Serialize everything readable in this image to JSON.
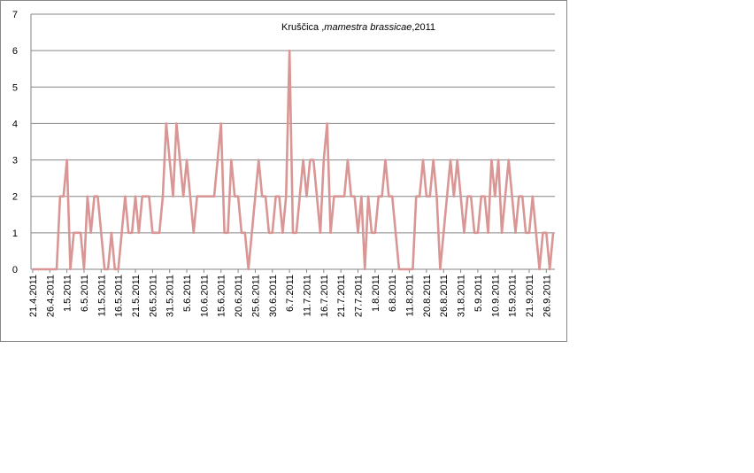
{
  "chart_data": {
    "type": "line",
    "title": [
      "Kruščica ,",
      "mamestra brassicae",
      ",2011"
    ],
    "categories": [
      "21.4.2011",
      null,
      null,
      null,
      null,
      "26.4.2011",
      null,
      null,
      null,
      null,
      "1.5.2011",
      null,
      null,
      null,
      null,
      "6.5.2011",
      null,
      null,
      null,
      null,
      "11.5.2011",
      null,
      null,
      null,
      null,
      "16.5.2011",
      null,
      null,
      null,
      null,
      "21.5.2011",
      null,
      null,
      null,
      null,
      "26.5.2011",
      null,
      null,
      null,
      null,
      "31.5.2011",
      null,
      null,
      null,
      null,
      "5.6.2011",
      null,
      null,
      null,
      null,
      "10.6.2011",
      null,
      null,
      null,
      null,
      "15.6.2011",
      null,
      null,
      null,
      null,
      "20.6.2011",
      null,
      null,
      null,
      null,
      "25.6.2011",
      null,
      null,
      null,
      null,
      "30.6.2011",
      null,
      null,
      null,
      null,
      "6.7.2011",
      null,
      null,
      null,
      null,
      "11.7.2011",
      null,
      null,
      null,
      null,
      "16.7.2011",
      null,
      null,
      null,
      null,
      "21.7.2011",
      null,
      null,
      null,
      null,
      "27.7.2011",
      null,
      null,
      null,
      null,
      "1.8.2011",
      null,
      null,
      null,
      null,
      "6.8.2011",
      null,
      null,
      null,
      null,
      "11.8.2011",
      null,
      null,
      null,
      null,
      "20.8.2011",
      null,
      null,
      null,
      null,
      "26.8.2011",
      null,
      null,
      null,
      null,
      "31.8.2011",
      null,
      null,
      null,
      null,
      "5.9.2011",
      null,
      null,
      null,
      null,
      "10.9.2011",
      null,
      null,
      null,
      null,
      "15.9.2011",
      null,
      null,
      null,
      null,
      "21.9.2011",
      null,
      null,
      null,
      null,
      "26.9.2011",
      null,
      null
    ],
    "values": [
      0,
      0,
      0,
      0,
      0,
      0,
      0,
      0,
      2,
      2,
      3,
      0,
      1,
      1,
      1,
      0,
      2,
      1,
      2,
      2,
      1,
      0,
      0,
      1,
      0,
      0,
      1,
      2,
      1,
      1,
      2,
      1,
      2,
      2,
      2,
      1,
      1,
      1,
      2,
      4,
      3,
      2,
      4,
      3,
      2,
      3,
      2,
      1,
      2,
      2,
      2,
      2,
      2,
      2,
      3,
      4,
      1,
      1,
      3,
      2,
      2,
      1,
      1,
      0,
      1,
      2,
      3,
      2,
      2,
      1,
      1,
      2,
      2,
      1,
      2,
      6,
      1,
      1,
      2,
      3,
      2,
      3,
      3,
      2,
      1,
      3,
      4,
      1,
      2,
      2,
      2,
      2,
      3,
      2,
      2,
      1,
      2,
      0,
      2,
      1,
      1,
      2,
      2,
      3,
      2,
      2,
      1,
      0,
      0,
      0,
      0,
      0,
      2,
      2,
      3,
      2,
      2,
      3,
      2,
      0,
      1,
      2,
      3,
      2,
      3,
      2,
      1,
      2,
      2,
      1,
      1,
      2,
      2,
      1,
      3,
      2,
      3,
      1,
      2,
      3,
      2,
      1,
      2,
      2,
      1,
      1,
      2,
      1,
      0,
      1,
      1,
      0,
      1
    ],
    "color": "#d99694",
    "ylim": [
      0,
      7
    ],
    "yticks": [
      0,
      1,
      2,
      3,
      4,
      5,
      6,
      7
    ],
    "grid": true
  }
}
